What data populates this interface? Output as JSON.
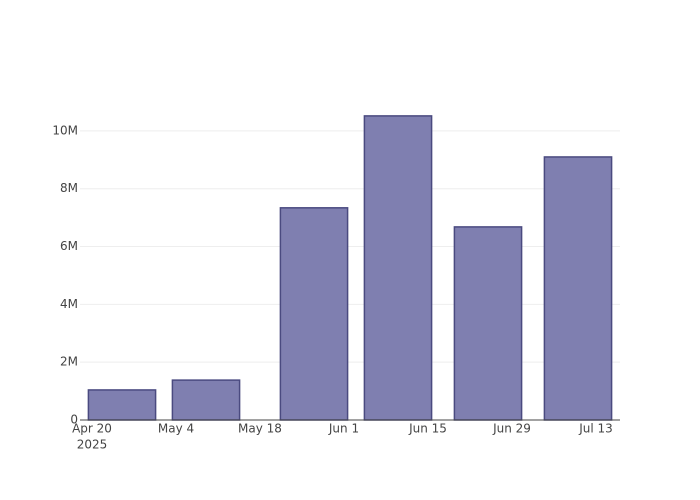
{
  "chart_data": {
    "type": "bar",
    "x": [
      "2025-04-25",
      "2025-05-09",
      "2025-05-27",
      "2025-06-10",
      "2025-06-25",
      "2025-07-10"
    ],
    "values": [
      1040000,
      1380000,
      7340000,
      10520000,
      6680000,
      9100000
    ],
    "color": "#7f7fb0",
    "line_color": "#4a4a80",
    "xlim": [
      "2025-04-18",
      "2025-07-17"
    ],
    "xticks": [
      {
        "value": "2025-04-20",
        "label": "Apr 20",
        "sublabel": "2025"
      },
      {
        "value": "2025-05-04",
        "label": "May 4"
      },
      {
        "value": "2025-05-18",
        "label": "May 18"
      },
      {
        "value": "2025-06-01",
        "label": "Jun 1"
      },
      {
        "value": "2025-06-15",
        "label": "Jun 15"
      },
      {
        "value": "2025-06-29",
        "label": "Jun 29"
      },
      {
        "value": "2025-07-13",
        "label": "Jul 13"
      }
    ],
    "ylim": [
      0,
      11070000
    ],
    "yticks": [
      0,
      {
        "value": 2000000,
        "label": "2M"
      },
      {
        "value": 4000000,
        "label": "4M"
      },
      {
        "value": 6000000,
        "label": "6M"
      },
      {
        "value": 8000000,
        "label": "8M"
      },
      {
        "value": 10000000,
        "label": "10M"
      }
    ],
    "grid": true
  }
}
